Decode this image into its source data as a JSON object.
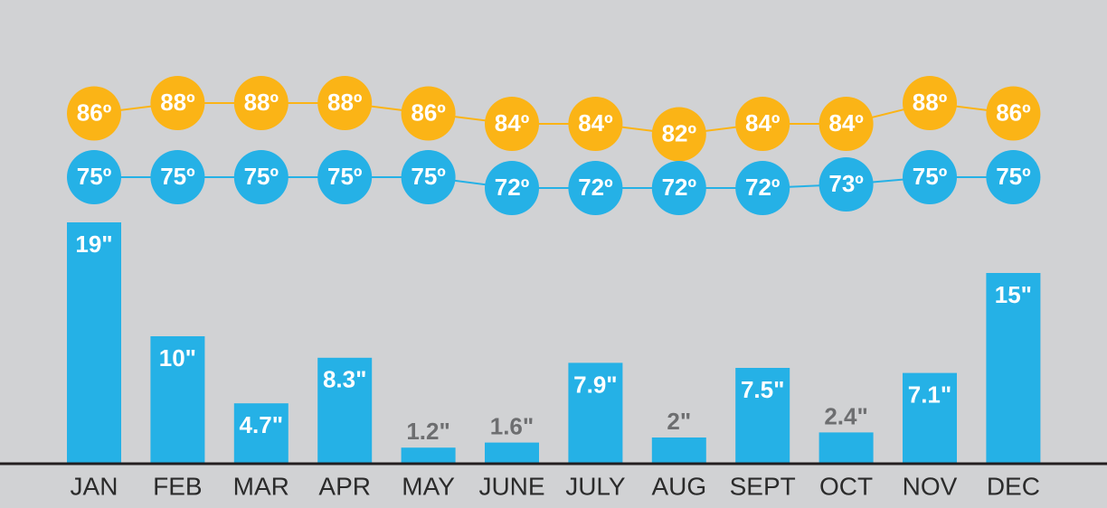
{
  "chart_data": [
    {
      "type": "bar",
      "categories": [
        "JAN",
        "FEB",
        "MAR",
        "APR",
        "MAY",
        "JUNE",
        "JULY",
        "AUG",
        "SEPT",
        "OCT",
        "NOV",
        "DEC"
      ],
      "values": [
        19,
        10,
        4.7,
        8.3,
        1.2,
        1.6,
        7.9,
        2,
        7.5,
        2.4,
        7.1,
        15
      ],
      "value_labels": [
        "19\"",
        "10\"",
        "4.7\"",
        "8.3\"",
        "1.2\"",
        "1.6\"",
        "7.9\"",
        "2\"",
        "7.5\"",
        "2.4\"",
        "7.1\"",
        "15\""
      ],
      "color": "#25b1e6"
    },
    {
      "type": "line",
      "series": [
        {
          "color": "#fbb416",
          "values": [
            86,
            88,
            88,
            88,
            86,
            84,
            84,
            82,
            84,
            84,
            88,
            86
          ],
          "value_labels": [
            "86º",
            "88º",
            "88º",
            "88º",
            "86º",
            "84º",
            "84º",
            "82º",
            "84º",
            "84º",
            "88º",
            "86º"
          ]
        },
        {
          "color": "#25b1e6",
          "values": [
            75,
            75,
            75,
            75,
            75,
            72,
            72,
            72,
            72,
            73,
            75,
            75
          ],
          "value_labels": [
            "75º",
            "75º",
            "75º",
            "75º",
            "75º",
            "72º",
            "72º",
            "72º",
            "72º",
            "73º",
            "75º",
            "75º"
          ]
        }
      ]
    }
  ]
}
